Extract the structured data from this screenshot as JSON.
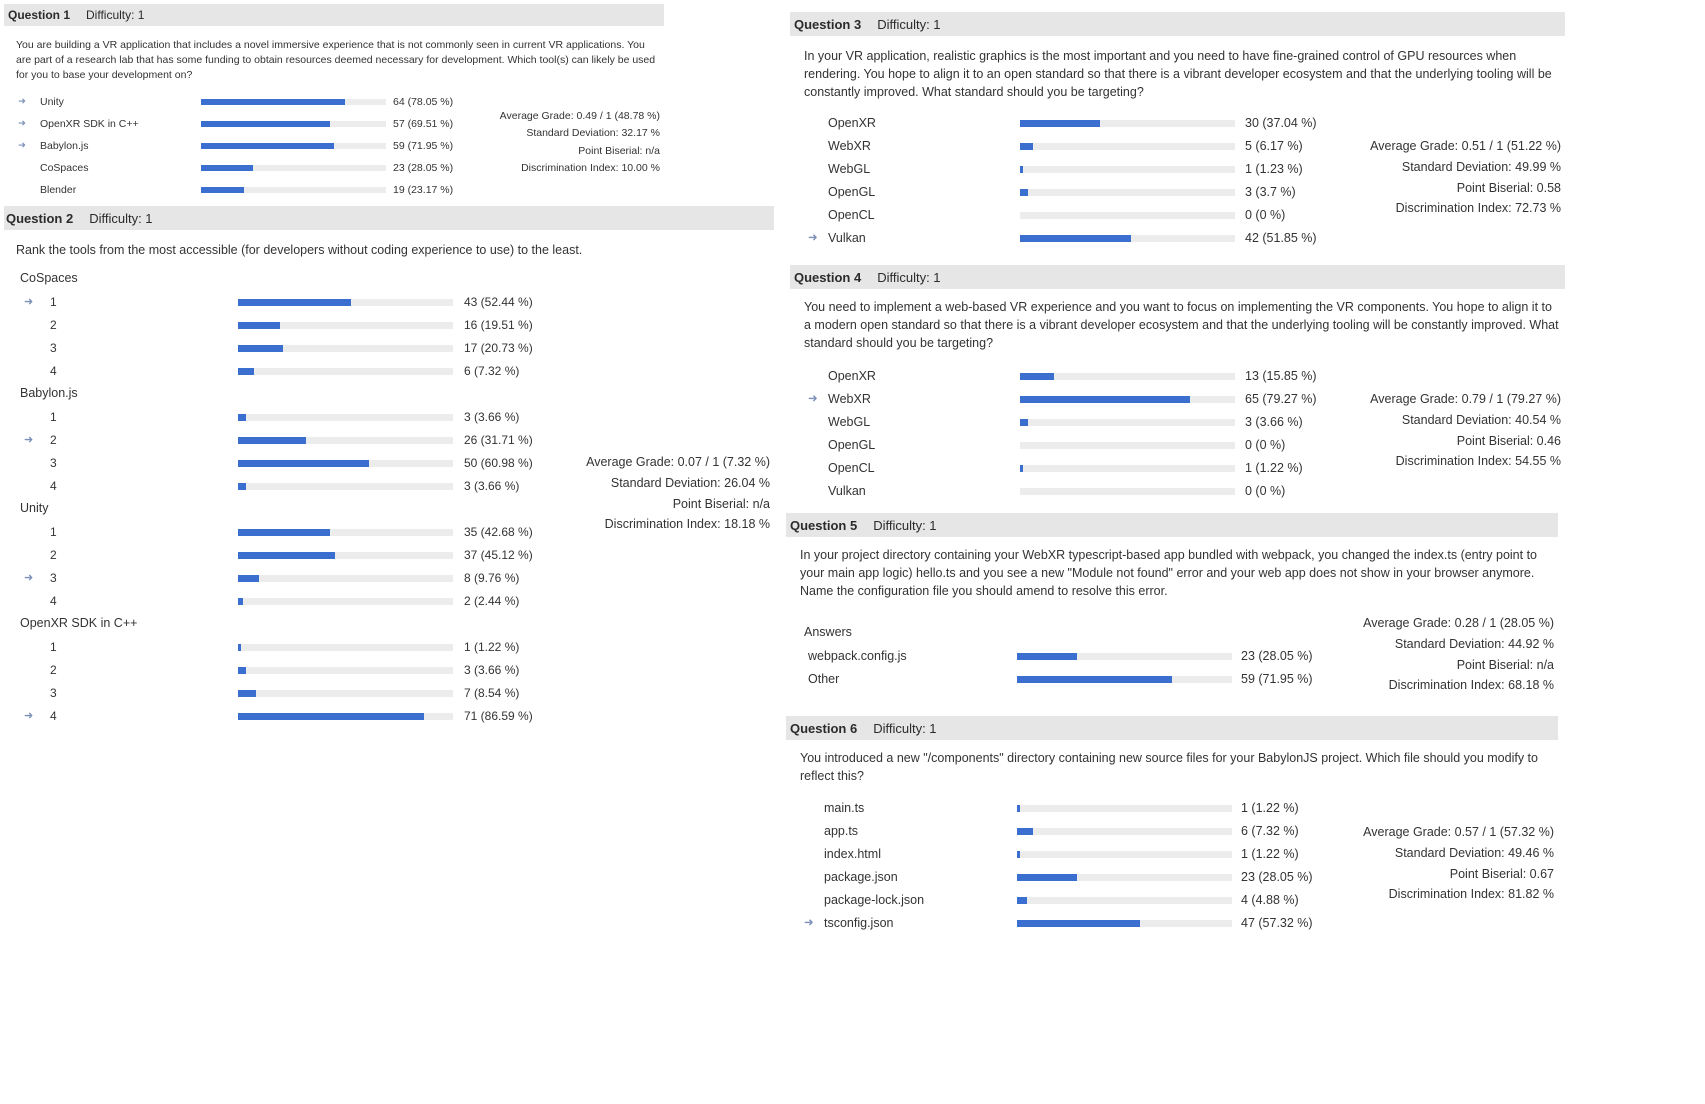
{
  "q1": {
    "title": "Question 1",
    "difficulty": "Difficulty: 1",
    "text": "You are building a VR application that includes a novel immersive experience that is not commonly seen in current VR applications. You are part of a research lab that has some funding to obtain resources deemed necessary for development. Which tool(s) can likely be used for you to base your development on?",
    "options": [
      {
        "label": "Unity",
        "count": "64 (78.05 %)",
        "pct": 78.05,
        "correct": true
      },
      {
        "label": "OpenXR SDK in C++",
        "count": "57 (69.51 %)",
        "pct": 69.51,
        "correct": true
      },
      {
        "label": "Babylon.js",
        "count": "59 (71.95 %)",
        "pct": 71.95,
        "correct": true
      },
      {
        "label": "CoSpaces",
        "count": "23 (28.05 %)",
        "pct": 28.05,
        "correct": false
      },
      {
        "label": "Blender",
        "count": "19 (23.17 %)",
        "pct": 23.17,
        "correct": false
      }
    ],
    "stats": {
      "avg": "Average Grade: 0.49 / 1 (48.78 %)",
      "sd": "Standard Deviation: 32.17 %",
      "pb": "Point Biserial: n/a",
      "di": "Discrimination Index: 10.00 %"
    }
  },
  "q2": {
    "title": "Question 2",
    "difficulty": "Difficulty: 1",
    "text": "Rank the tools from the most accessible (for developers without coding experience to use) to the least.",
    "groups": [
      {
        "label": "CoSpaces",
        "rows": [
          {
            "rank": "1",
            "count": "43 (52.44 %)",
            "pct": 52.44,
            "correct": true
          },
          {
            "rank": "2",
            "count": "16 (19.51 %)",
            "pct": 19.51,
            "correct": false
          },
          {
            "rank": "3",
            "count": "17 (20.73 %)",
            "pct": 20.73,
            "correct": false
          },
          {
            "rank": "4",
            "count": "6  (7.32 %)",
            "pct": 7.32,
            "correct": false
          }
        ]
      },
      {
        "label": "Babylon.js",
        "rows": [
          {
            "rank": "1",
            "count": "3  (3.66 %)",
            "pct": 3.66,
            "correct": false
          },
          {
            "rank": "2",
            "count": "26 (31.71 %)",
            "pct": 31.71,
            "correct": true
          },
          {
            "rank": "3",
            "count": "50 (60.98 %)",
            "pct": 60.98,
            "correct": false
          },
          {
            "rank": "4",
            "count": "3  (3.66 %)",
            "pct": 3.66,
            "correct": false
          }
        ]
      },
      {
        "label": "Unity",
        "rows": [
          {
            "rank": "1",
            "count": "35 (42.68 %)",
            "pct": 42.68,
            "correct": false
          },
          {
            "rank": "2",
            "count": "37 (45.12 %)",
            "pct": 45.12,
            "correct": false
          },
          {
            "rank": "3",
            "count": "8  (9.76 %)",
            "pct": 9.76,
            "correct": true
          },
          {
            "rank": "4",
            "count": "2  (2.44 %)",
            "pct": 2.44,
            "correct": false
          }
        ]
      },
      {
        "label": "OpenXR SDK in C++",
        "rows": [
          {
            "rank": "1",
            "count": "1  (1.22 %)",
            "pct": 1.22,
            "correct": false
          },
          {
            "rank": "2",
            "count": "3  (3.66 %)",
            "pct": 3.66,
            "correct": false
          },
          {
            "rank": "3",
            "count": "7  (8.54 %)",
            "pct": 8.54,
            "correct": false
          },
          {
            "rank": "4",
            "count": "71 (86.59 %)",
            "pct": 86.59,
            "correct": true
          }
        ]
      }
    ],
    "stats": {
      "avg": "Average Grade: 0.07 / 1 (7.32 %)",
      "sd": "Standard Deviation: 26.04 %",
      "pb": "Point Biserial: n/a",
      "di": "Discrimination Index: 18.18 %"
    }
  },
  "q3": {
    "title": "Question 3",
    "difficulty": "Difficulty: 1",
    "text": "In your VR application, realistic graphics is the most important and you need to have fine-grained control of GPU resources when rendering. You hope to align it to an open standard so that there is a vibrant developer ecosystem and that the underlying tooling will be constantly improved. What standard should you be targeting?",
    "options": [
      {
        "label": "OpenXR",
        "count": "30 (37.04 %)",
        "pct": 37.04,
        "correct": false
      },
      {
        "label": "WebXR",
        "count": "5  (6.17 %)",
        "pct": 6.17,
        "correct": false
      },
      {
        "label": "WebGL",
        "count": "1  (1.23 %)",
        "pct": 1.23,
        "correct": false
      },
      {
        "label": "OpenGL",
        "count": "3  (3.7 %)",
        "pct": 3.7,
        "correct": false
      },
      {
        "label": "OpenCL",
        "count": "0   (0 %)",
        "pct": 0,
        "correct": false
      },
      {
        "label": "Vulkan",
        "count": "42 (51.85 %)",
        "pct": 51.85,
        "correct": true
      }
    ],
    "stats": {
      "avg": "Average Grade: 0.51 / 1 (51.22 %)",
      "sd": "Standard Deviation: 49.99 %",
      "pb": "Point Biserial: 0.58",
      "di": "Discrimination Index: 72.73 %"
    }
  },
  "q4": {
    "title": "Question 4",
    "difficulty": "Difficulty: 1",
    "text": "You need to implement a web-based VR experience and you want to focus on implementing the VR components. You hope to align it to a modern open standard so that there is a vibrant developer ecosystem and that the underlying tooling will be constantly improved. What standard should you be targeting?",
    "options": [
      {
        "label": "OpenXR",
        "count": "13 (15.85 %)",
        "pct": 15.85,
        "correct": false
      },
      {
        "label": "WebXR",
        "count": "65 (79.27 %)",
        "pct": 79.27,
        "correct": true
      },
      {
        "label": "WebGL",
        "count": "3  (3.66 %)",
        "pct": 3.66,
        "correct": false
      },
      {
        "label": "OpenGL",
        "count": "0   (0 %)",
        "pct": 0,
        "correct": false
      },
      {
        "label": "OpenCL",
        "count": "1  (1.22 %)",
        "pct": 1.22,
        "correct": false
      },
      {
        "label": "Vulkan",
        "count": "0   (0 %)",
        "pct": 0,
        "correct": false
      }
    ],
    "stats": {
      "avg": "Average Grade: 0.79 / 1 (79.27 %)",
      "sd": "Standard Deviation: 40.54 %",
      "pb": "Point Biserial: 0.46",
      "di": "Discrimination Index: 54.55 %"
    }
  },
  "q5": {
    "title": "Question 5",
    "difficulty": "Difficulty: 1",
    "text": "In your project directory containing your WebXR typescript-based app bundled with webpack, you changed the index.ts (entry point to your main app logic) hello.ts and you see a new \"Module not found\" error and your web app does not show in your browser anymore. Name the configuration file you should amend to resolve this error.",
    "answers_label": "Answers",
    "options": [
      {
        "label": "webpack.config.js",
        "count": "23 (28.05 %)",
        "pct": 28.05,
        "correct": false
      },
      {
        "label": "Other",
        "count": "59 (71.95 %)",
        "pct": 71.95,
        "correct": false
      }
    ],
    "stats": {
      "avg": "Average Grade: 0.28 / 1 (28.05 %)",
      "sd": "Standard Deviation: 44.92 %",
      "pb": "Point Biserial: n/a",
      "di": "Discrimination Index: 68.18 %"
    }
  },
  "q6": {
    "title": "Question 6",
    "difficulty": "Difficulty: 1",
    "text": "You introduced a new \"/components\" directory containing new source files for your BabylonJS project. Which file should you modify to reflect this?",
    "options": [
      {
        "label": "main.ts",
        "count": "1  (1.22 %)",
        "pct": 1.22,
        "correct": false
      },
      {
        "label": "app.ts",
        "count": "6  (7.32 %)",
        "pct": 7.32,
        "correct": false
      },
      {
        "label": "index.html",
        "count": "1  (1.22 %)",
        "pct": 1.22,
        "correct": false
      },
      {
        "label": "package.json",
        "count": "23 (28.05 %)",
        "pct": 28.05,
        "correct": false
      },
      {
        "label": "package-lock.json",
        "count": "4  (4.88 %)",
        "pct": 4.88,
        "correct": false
      },
      {
        "label": "tsconfig.json",
        "count": "47 (57.32 %)",
        "pct": 57.32,
        "correct": true
      }
    ],
    "stats": {
      "avg": "Average Grade: 0.57 / 1 (57.32 %)",
      "sd": "Standard Deviation: 49.46 %",
      "pb": "Point Biserial: 0.67",
      "di": "Discrimination Index: 81.82 %"
    }
  },
  "icons": {
    "correct": "correct-answer-arrow-icon"
  },
  "colors": {
    "bar": "#3a6fd0",
    "track": "#ececec",
    "header": "#e6e6e6",
    "arrow": "#7a90b8"
  }
}
